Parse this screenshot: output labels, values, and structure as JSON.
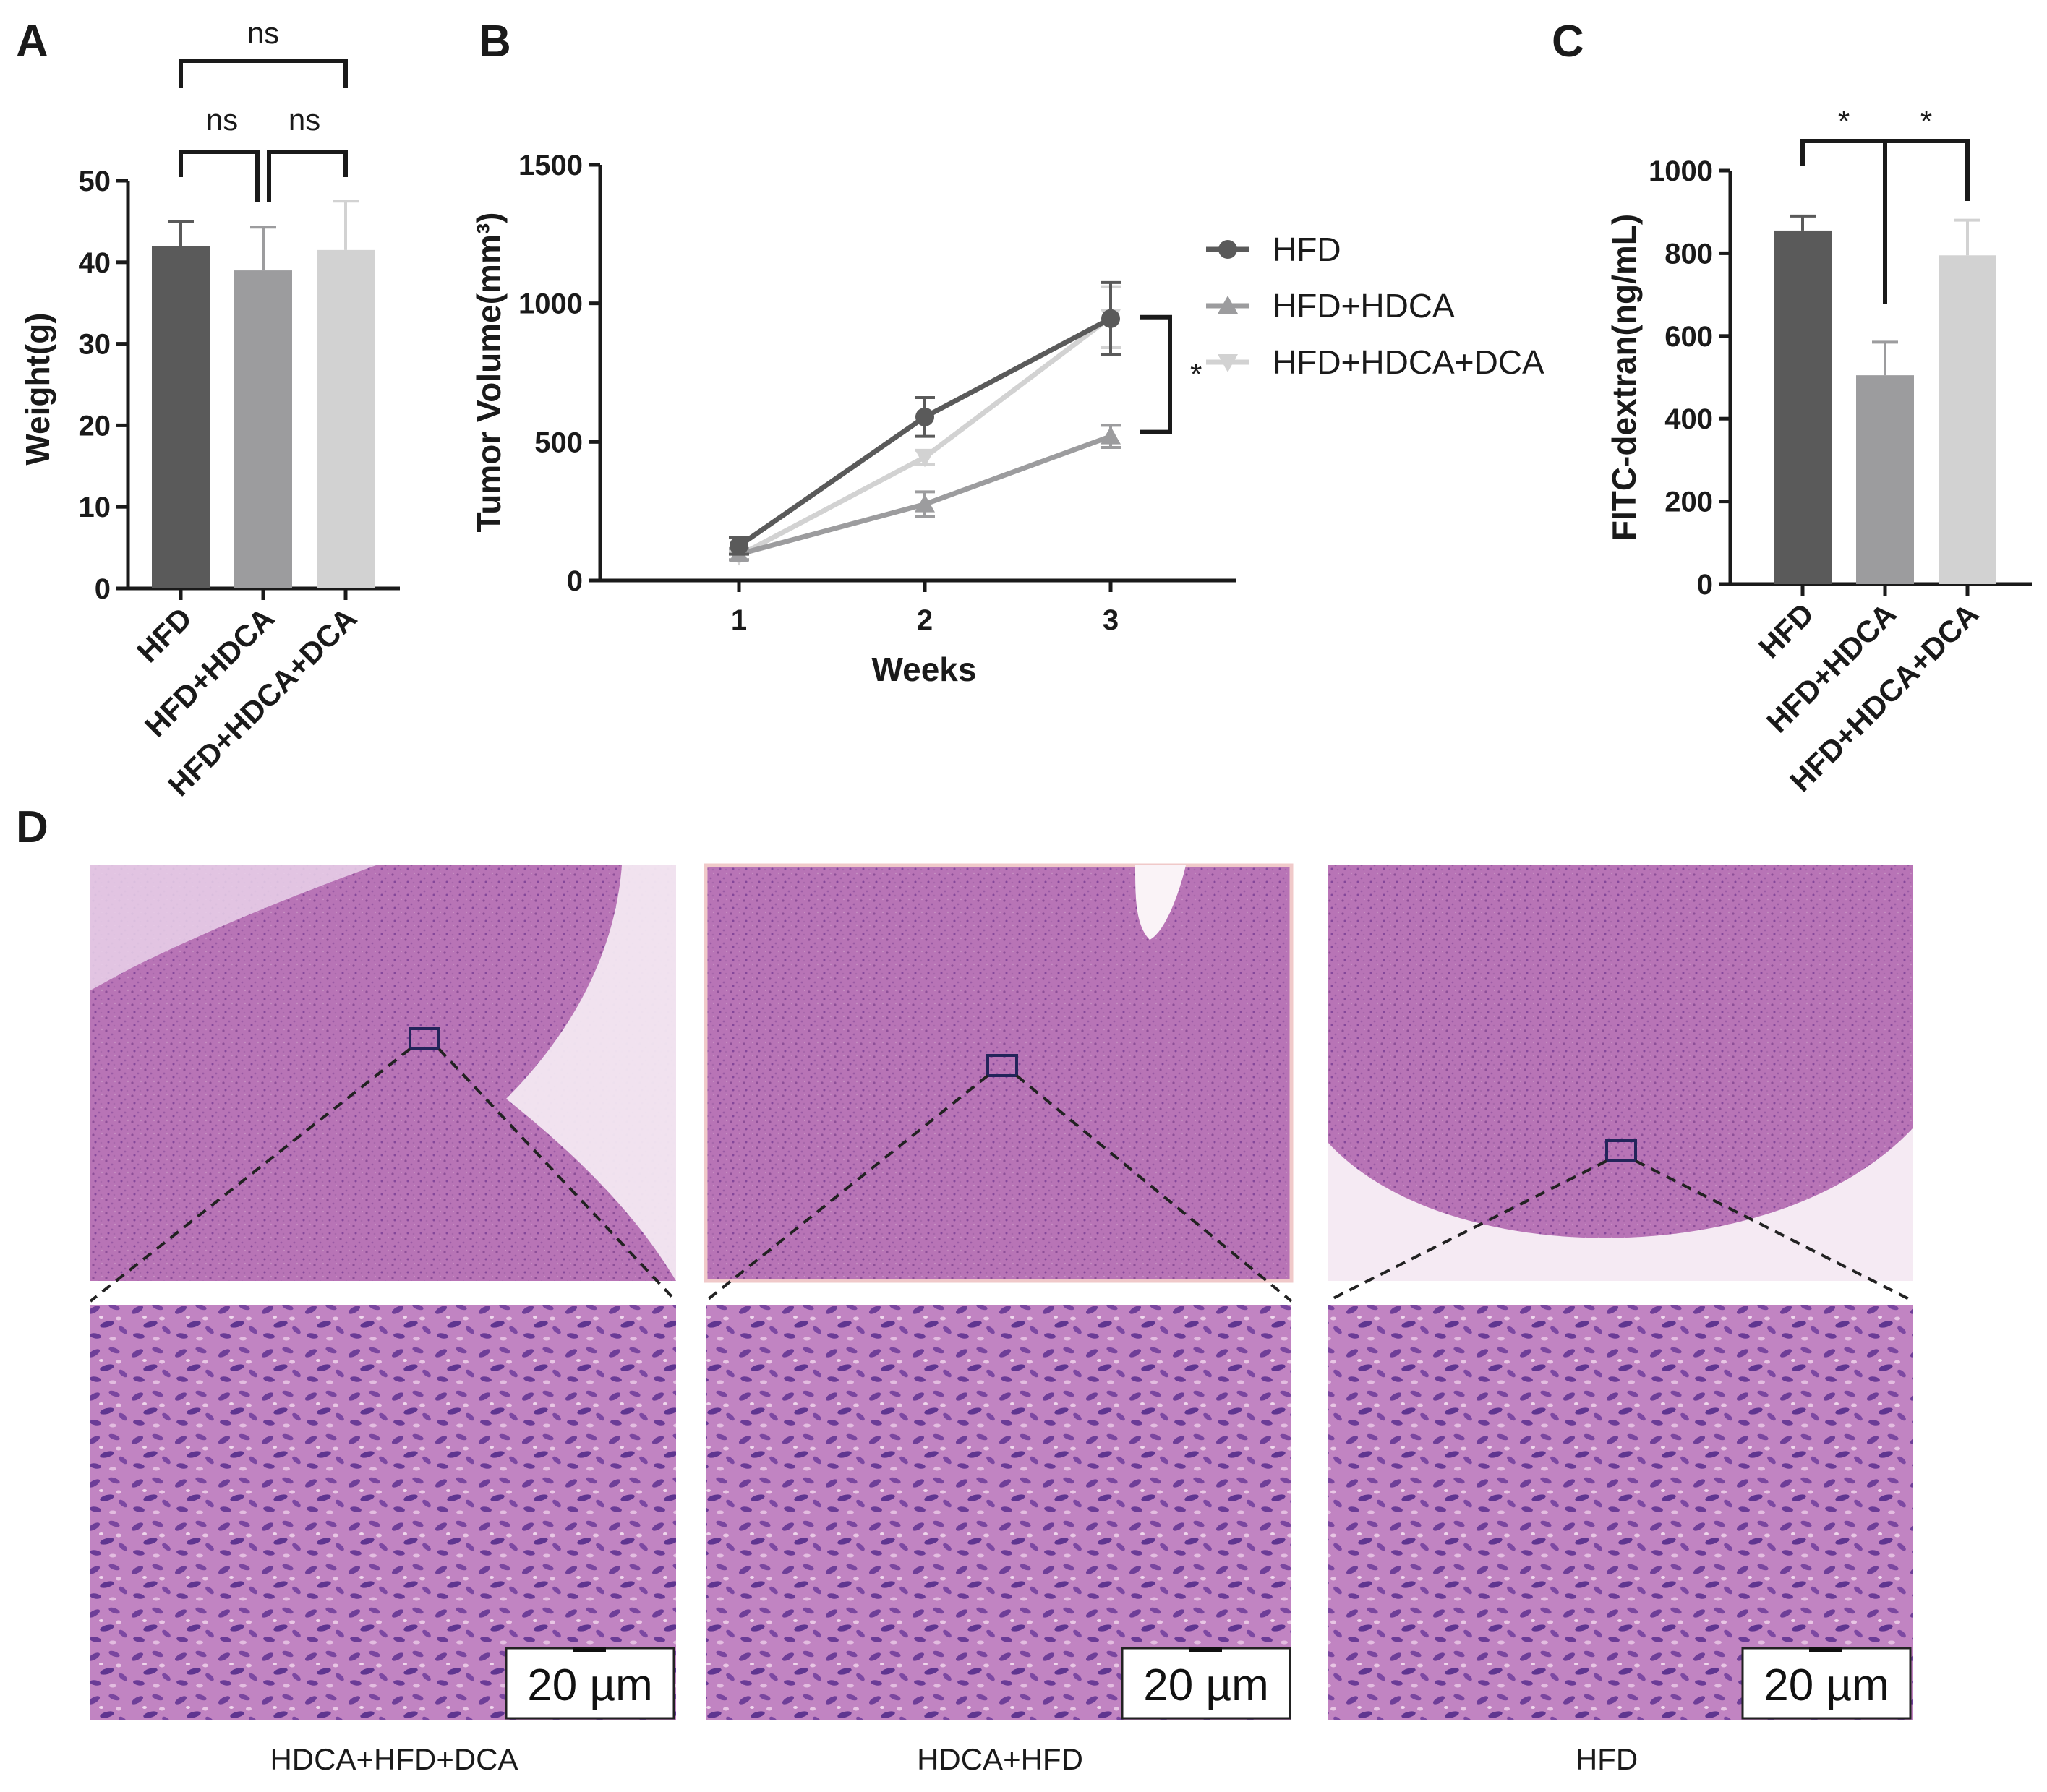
{
  "panels": {
    "a": "A",
    "b": "B",
    "c": "C",
    "d": "D"
  },
  "colors": {
    "hfd": "#5a5a5a",
    "hfd_hdca": "#9c9c9e",
    "hfd_hdca_dca": "#d2d2d2"
  },
  "chart_data": [
    {
      "id": "A",
      "type": "bar",
      "categories": [
        "HFD",
        "HFD+HDCA",
        "HFD+HDCA+DCA"
      ],
      "values": [
        42,
        39,
        41.5
      ],
      "errors": [
        3,
        5.3,
        6
      ],
      "ylabel": "Weight(g)",
      "ylim": [
        0,
        50
      ],
      "yticks": [
        "0",
        "10",
        "20",
        "30",
        "40",
        "50"
      ],
      "significance": [
        {
          "from": 0,
          "to": 2,
          "label": "ns"
        },
        {
          "from": 0,
          "to": 1,
          "label": "ns"
        },
        {
          "from": 1,
          "to": 2,
          "label": "ns"
        }
      ]
    },
    {
      "id": "B",
      "type": "line",
      "x": [
        1,
        2,
        3
      ],
      "xticks": [
        "1",
        "2",
        "3"
      ],
      "xlabel": "Weeks",
      "ylabel": "Tumor Volume(mm³)",
      "ylim": [
        0,
        1500
      ],
      "yticks": [
        "0",
        "500",
        "1000",
        "1500"
      ],
      "series": [
        {
          "name": "HFD",
          "values": [
            125,
            590,
            945
          ],
          "errors": [
            30,
            70,
            130
          ],
          "marker": "circle"
        },
        {
          "name": "HFD+HDCA",
          "values": [
            95,
            275,
            520
          ],
          "errors": [
            20,
            45,
            40
          ],
          "marker": "triangle-up"
        },
        {
          "name": "HFD+HDCA+DCA",
          "values": [
            90,
            445,
            950
          ],
          "errors": [
            15,
            25,
            110
          ],
          "marker": "triangle-down"
        }
      ],
      "significance": [
        {
          "label": "*"
        }
      ],
      "legend": "right"
    },
    {
      "id": "C",
      "type": "bar",
      "categories": [
        "HFD",
        "HFD+HDCA",
        "HFD+HDCA+DCA"
      ],
      "values": [
        855,
        505,
        795
      ],
      "errors": [
        35,
        80,
        85
      ],
      "ylabel": "FITC-dextran(ng/mL)",
      "ylim": [
        0,
        1000
      ],
      "yticks": [
        "0",
        "200",
        "400",
        "600",
        "800",
        "1000"
      ],
      "significance": [
        {
          "from": 0,
          "to": 1,
          "label": "*"
        },
        {
          "from": 1,
          "to": 2,
          "label": "*"
        }
      ]
    }
  ],
  "histology": {
    "scale_label": "20 µm",
    "captions": [
      "HDCA+HFD+DCA",
      "HDCA+HFD",
      "HFD"
    ]
  }
}
